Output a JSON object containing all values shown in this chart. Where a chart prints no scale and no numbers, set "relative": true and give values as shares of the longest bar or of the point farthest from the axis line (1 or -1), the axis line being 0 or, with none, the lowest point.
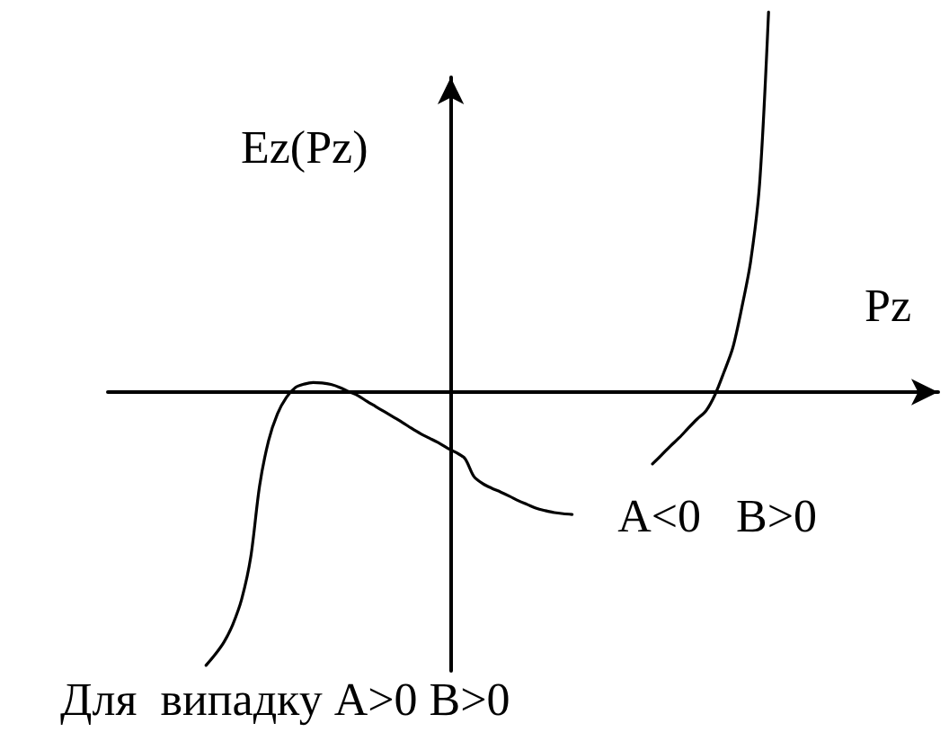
{
  "chart_data": {
    "type": "line",
    "relative": true,
    "xlabel": "Pz",
    "ylabel": "Ez(Pz)",
    "marker": "none",
    "grid": false,
    "legend": false,
    "categories": [
      null,
      null,
      null,
      null,
      null,
      null,
      null,
      null,
      null,
      null,
      null,
      null,
      null,
      null,
      null,
      null,
      null,
      null,
      null,
      null,
      null,
      null,
      null,
      null,
      null,
      null,
      null,
      null,
      null,
      null,
      null,
      null,
      null,
      null,
      null,
      null,
      null,
      null,
      null,
      null,
      null,
      null,
      null,
      null,
      null,
      null,
      null,
      null,
      null,
      null,
      null,
      null,
      null,
      null,
      null,
      null,
      null,
      null,
      null,
      null,
      null,
      null,
      null,
      null,
      null,
      null,
      null,
      null,
      null,
      null,
      null,
      null,
      null,
      null,
      null,
      null,
      null,
      null,
      null,
      null,
      null,
      null,
      null,
      null,
      null,
      null,
      null,
      null,
      null,
      null,
      null,
      null,
      null,
      null
    ],
    "series": [
      {
        "name": "Для  випадку A>0 B>0",
        "color": "#000000",
        "values": [
          null,
          null,
          null,
          null,
          null,
          null,
          null,
          null,
          null,
          null,
          null,
          -0.719,
          -0.691,
          -0.658,
          -0.611,
          -0.544,
          -0.435,
          -0.246,
          -0.128,
          -0.057,
          -0.014,
          0.012,
          0.021,
          0.025,
          0.024,
          0.02,
          0.012,
          0.001,
          -0.009,
          -0.024,
          -0.038,
          -0.052,
          -0.066,
          -0.08,
          -0.095,
          -0.109,
          -0.121,
          -0.133,
          -0.147,
          -0.159,
          -0.175,
          -0.222,
          -0.241,
          -0.253,
          -0.263,
          -0.274,
          -0.286,
          -0.296,
          -0.306,
          -0.312,
          -0.317,
          -0.32,
          -0.322,
          null,
          null,
          null,
          null,
          null,
          null,
          null,
          null,
          null,
          null,
          null,
          null,
          null,
          null,
          null,
          null,
          null,
          null,
          null,
          null,
          null,
          null,
          null,
          null,
          null,
          null,
          null,
          null,
          null,
          null,
          null,
          null,
          null,
          null,
          null,
          null,
          null,
          null,
          null,
          null,
          null
        ]
      },
      {
        "name": "A<0   B>0",
        "color": "#000000",
        "values": [
          null,
          null,
          null,
          null,
          null,
          null,
          null,
          null,
          null,
          null,
          null,
          null,
          null,
          null,
          null,
          null,
          null,
          null,
          null,
          null,
          null,
          null,
          null,
          null,
          null,
          null,
          null,
          null,
          null,
          null,
          null,
          null,
          null,
          null,
          null,
          null,
          null,
          null,
          null,
          null,
          null,
          null,
          null,
          null,
          null,
          null,
          null,
          null,
          null,
          null,
          null,
          null,
          null,
          null,
          null,
          null,
          null,
          null,
          null,
          null,
          null,
          -0.189,
          -0.166,
          -0.142,
          -0.12,
          -0.095,
          -0.071,
          -0.049,
          -0.007,
          0.052,
          0.117,
          0.222,
          0.345,
          0.549,
          1,
          null,
          null,
          null,
          null,
          null,
          null,
          null,
          null,
          null,
          null,
          null,
          null,
          null,
          null,
          null,
          null,
          null,
          null,
          null
        ]
      }
    ]
  }
}
